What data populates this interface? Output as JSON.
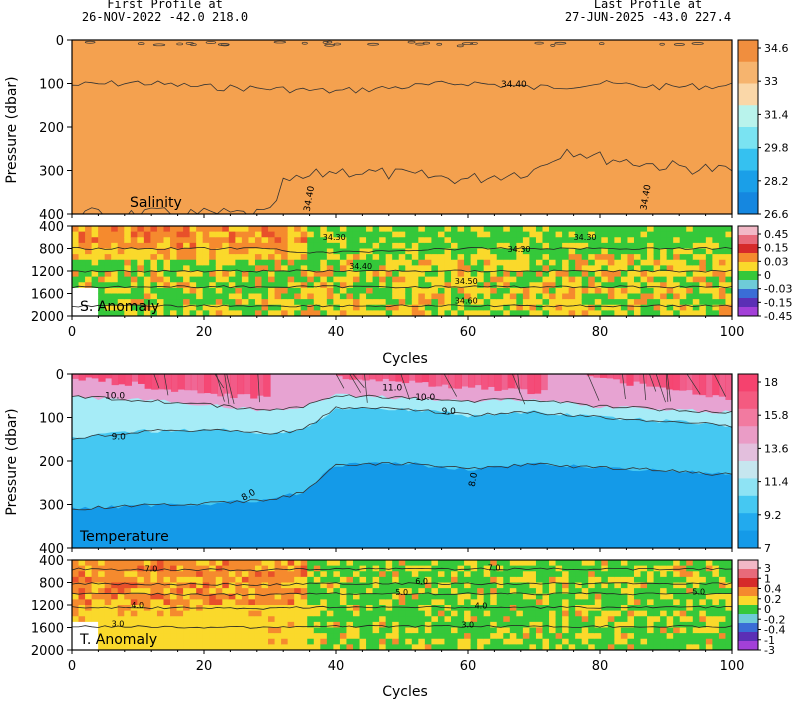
{
  "header": {
    "first_label": "First Profile at",
    "first_value": "26-NOV-2022   -42.0  218.0",
    "last_label": "Last Profile at",
    "last_value": "27-JUN-2025   -43.0  227.4"
  },
  "colors": {
    "salinity_fill": "#f4a14f",
    "orange_anom": "#f58a2e",
    "red_anom": "#e8502a",
    "yellow_anom": "#fad92b",
    "green_anom": "#35c83a",
    "temp_red": "#f5426e",
    "temp_pink": "#e7a3d2",
    "temp_lightblue": "#a6ecf7",
    "temp_cyan": "#45c8f2",
    "temp_blue": "#149ae8",
    "contour": "#333333"
  },
  "chart_data": [
    {
      "type": "heatmap",
      "title": "Salinity",
      "ylabel": "Pressure (dbar)",
      "xlabel": "",
      "xlim": [
        0,
        100
      ],
      "ylim": [
        400,
        0
      ],
      "yticks": [
        0,
        100,
        200,
        300,
        400
      ],
      "contours": [
        {
          "label": "34.40",
          "depth": [
            104,
            98,
            108,
            112,
            118,
            108,
            98,
            110,
            100,
            108,
            105
          ],
          "x": [
            0,
            10,
            20,
            30,
            40,
            50,
            60,
            70,
            80,
            90,
            100
          ]
        }
      ],
      "colorbar": {
        "ticks": [
          "34.6",
          "33",
          "31.4",
          "29.8",
          "28.2",
          "26.6"
        ]
      },
      "field": "34.6+"
    },
    {
      "type": "heatmap",
      "title": "S. Anomaly",
      "ylabel": "",
      "xlabel": "Cycles",
      "xlim": [
        0,
        100
      ],
      "ylim": [
        2000,
        400
      ],
      "yticks": [
        400,
        800,
        1200,
        1600,
        2000
      ],
      "xticks": [
        0,
        20,
        40,
        60,
        80,
        100
      ],
      "contour_labels": [
        "34.30",
        "34.30",
        "34.30",
        "34.40",
        "34.50",
        "34.60"
      ],
      "contours": [
        {
          "label": "34.30",
          "depth": 800
        },
        {
          "label": "34.40",
          "depth": 1200
        },
        {
          "label": "34.50",
          "depth": 1480
        },
        {
          "label": "34.60",
          "depth": 1820
        }
      ],
      "colorbar": {
        "ticks": [
          "0.45",
          "0.15",
          "0.03",
          "0",
          "-0.03",
          "-0.15",
          "-0.45"
        ]
      }
    },
    {
      "type": "heatmap",
      "title": "Temperature",
      "ylabel": "Pressure (dbar)",
      "xlabel": "",
      "xlim": [
        0,
        100
      ],
      "ylim": [
        400,
        0
      ],
      "yticks": [
        0,
        100,
        200,
        300,
        400
      ],
      "contour_labels": [
        "10.0",
        "9.0",
        "8.0",
        "11.0",
        "10.0",
        "9.0",
        "8.0"
      ],
      "contours": [
        {
          "label": "10.0",
          "x": [
            0,
            10,
            20,
            30,
            35,
            40,
            50,
            60,
            70,
            80,
            90,
            100
          ],
          "depth": [
            52,
            60,
            70,
            85,
            75,
            48,
            55,
            62,
            58,
            75,
            82,
            88
          ]
        },
        {
          "label": "9.0",
          "x": [
            0,
            10,
            20,
            30,
            35,
            40,
            50,
            60,
            70,
            80,
            90,
            100
          ],
          "depth": [
            148,
            132,
            128,
            135,
            130,
            78,
            80,
            95,
            88,
            100,
            108,
            120
          ]
        },
        {
          "label": "8.0",
          "x": [
            0,
            10,
            20,
            30,
            35,
            40,
            50,
            60,
            70,
            80,
            90,
            100
          ],
          "depth": [
            310,
            302,
            298,
            290,
            272,
            210,
            205,
            218,
            208,
            215,
            222,
            232
          ]
        }
      ],
      "colorbar": {
        "ticks": [
          "18",
          "15.8",
          "13.6",
          "11.4",
          "9.2",
          "7"
        ]
      }
    },
    {
      "type": "heatmap",
      "title": "T. Anomaly",
      "ylabel": "",
      "xlabel": "Cycles",
      "xlim": [
        0,
        100
      ],
      "ylim": [
        2000,
        400
      ],
      "yticks": [
        400,
        800,
        1200,
        1600,
        2000
      ],
      "xticks": [
        0,
        20,
        40,
        60,
        80,
        100
      ],
      "contour_labels": [
        "7.0",
        "4.0",
        "3.0",
        "7.0",
        "6.0",
        "5.0",
        "4.0",
        "3.0",
        "5.0"
      ],
      "contours": [
        {
          "label": "7.0",
          "depth": 560
        },
        {
          "label": "6.0",
          "depth": 820
        },
        {
          "label": "5.0",
          "depth": 1000
        },
        {
          "label": "4.0",
          "depth": 1240
        },
        {
          "label": "3.0",
          "depth": 1580
        }
      ],
      "colorbar": {
        "ticks": [
          "3",
          "1",
          "0.4",
          "0.2",
          "0",
          "-0.2",
          "-0.4",
          "-1",
          "-3"
        ]
      }
    }
  ]
}
